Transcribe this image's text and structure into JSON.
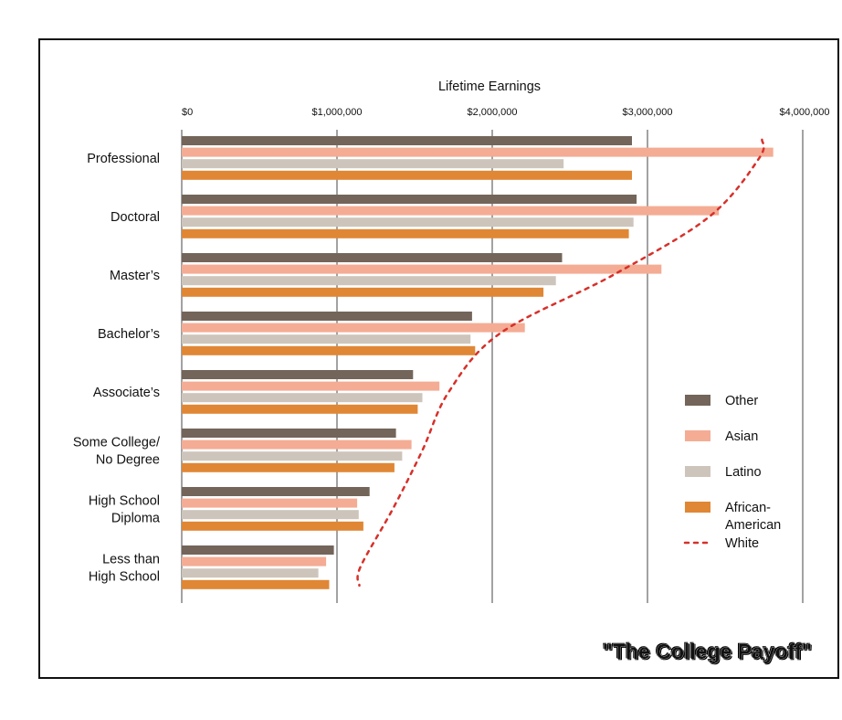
{
  "chart_data": {
    "type": "bar",
    "orientation": "horizontal",
    "title": "",
    "xlabel": "Lifetime Earnings",
    "ylabel": "",
    "xlim": [
      0,
      4000000
    ],
    "x_ticks": [
      0,
      1000000,
      2000000,
      3000000,
      4000000
    ],
    "x_tick_labels": [
      "$0",
      "$1,000,000",
      "$2,000,000",
      "$3,000,000",
      "$4,000,000"
    ],
    "grid": true,
    "legend_position": "right",
    "categories": [
      [
        "Professional"
      ],
      [
        "Doctoral"
      ],
      [
        "Master’s"
      ],
      [
        "Bachelor’s"
      ],
      [
        "Associate’s"
      ],
      [
        "Some College/",
        "No Degree"
      ],
      [
        "High School",
        "Diploma"
      ],
      [
        "Less than",
        "High School"
      ]
    ],
    "series": [
      {
        "name": "Other",
        "color": "#73655a",
        "values": [
          2900000,
          2930000,
          2450000,
          1870000,
          1490000,
          1380000,
          1210000,
          980000
        ]
      },
      {
        "name": "Asian",
        "color": "#f4ac94",
        "values": [
          3810000,
          3460000,
          3090000,
          2210000,
          1660000,
          1480000,
          1130000,
          930000
        ]
      },
      {
        "name": "Latino",
        "color": "#cdc5bb",
        "values": [
          2460000,
          2910000,
          2410000,
          1860000,
          1550000,
          1420000,
          1140000,
          880000
        ]
      },
      {
        "name": "African-American",
        "color": "#e08735",
        "values": [
          2900000,
          2880000,
          2330000,
          1890000,
          1520000,
          1370000,
          1170000,
          950000
        ]
      }
    ],
    "line_series": {
      "name": "White",
      "color": "#d7302a",
      "style": "dotted",
      "values": [
        3720000,
        3400000,
        2780000,
        2050000,
        1720000,
        1550000,
        1360000,
        1150000
      ]
    },
    "legend": [
      {
        "name": "Other",
        "color": "#73655a",
        "kind": "box"
      },
      {
        "name": "Asian",
        "color": "#f4ac94",
        "kind": "box"
      },
      {
        "name": "Latino",
        "color": "#cdc5bb",
        "kind": "box"
      },
      {
        "name": [
          "African-",
          "American"
        ],
        "color": "#e08735",
        "kind": "box"
      },
      {
        "name": "White",
        "color": "#d7302a",
        "kind": "dotted-line"
      }
    ]
  },
  "caption": "\"The College Payoff\""
}
